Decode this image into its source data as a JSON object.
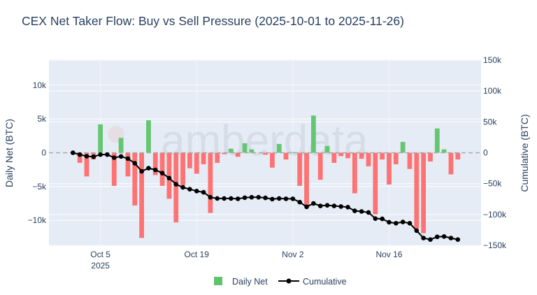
{
  "chart_data": {
    "type": "bar+line",
    "title": "CEX Net Taker Flow: Buy vs Sell Pressure (2025-10-01 to 2025-11-26)",
    "xlabel": "",
    "ylabel": "Daily Net (BTC)",
    "y2label": "Cumulative (BTC)",
    "start_date": "2025-10-01",
    "x_ticks": [
      {
        "day": 4,
        "label": "Oct 5",
        "sub": "2025"
      },
      {
        "day": 18,
        "label": "Oct 19",
        "sub": ""
      },
      {
        "day": 32,
        "label": "Nov 2",
        "sub": ""
      },
      {
        "day": 46,
        "label": "Nov 16",
        "sub": ""
      }
    ],
    "y_ticks": [
      {
        "v": 10,
        "label": "10k"
      },
      {
        "v": 5,
        "label": "5k"
      },
      {
        "v": 0,
        "label": "0"
      },
      {
        "v": -5,
        "label": "−5k"
      },
      {
        "v": -10,
        "label": "−10k"
      }
    ],
    "y2_ticks": [
      {
        "v": 150,
        "label": "150k"
      },
      {
        "v": 100,
        "label": "100k"
      },
      {
        "v": 50,
        "label": "50k"
      },
      {
        "v": 0,
        "label": "0"
      },
      {
        "v": -50,
        "label": "−50k"
      },
      {
        "v": -100,
        "label": "−100k"
      },
      {
        "v": -150,
        "label": "−150k"
      }
    ],
    "ylim": [
      -13.8,
      13.8
    ],
    "y2lim": [
      -151,
      151
    ],
    "units": "thousand BTC",
    "grid": true,
    "legend_position": "bottom-center",
    "series": [
      {
        "name": "Daily Net",
        "type": "bar",
        "color_positive": "#5ec46a",
        "color_negative": "#ff6b6b",
        "values": [
          0,
          -1.5,
          -3.5,
          -1.0,
          4.2,
          0,
          -4.9,
          2.2,
          -3.5,
          -7.8,
          -12.6,
          4.8,
          -3.3,
          -4.9,
          -6.8,
          -10.3,
          -4.8,
          -2.3,
          -3.1,
          -1.7,
          -8.9,
          -1.5,
          -0.2,
          0.6,
          -0.6,
          1.4,
          0.5,
          0,
          -0.3,
          -2.2,
          1.3,
          -1.0,
          0.1,
          -4.9,
          -8.0,
          5.5,
          -4.0,
          1.0,
          -1.5,
          -0.5,
          -0.8,
          -6.0,
          -0.9,
          -2.0,
          -9.1,
          -1.0,
          -4.7,
          -1.7,
          1.6,
          -2.4,
          -11.2,
          -11.9,
          -1.3,
          3.6,
          0.5,
          -3.2,
          -1.0
        ]
      },
      {
        "name": "Cumulative",
        "type": "line",
        "color": "#000000",
        "values": [
          0,
          -3,
          -5.7,
          -6.4,
          -3,
          -3,
          -8,
          -6,
          -9.5,
          -17,
          -30,
          -25,
          -27.7,
          -33,
          -41,
          -51,
          -56,
          -59,
          -62,
          -64,
          -72,
          -74,
          -74,
          -74,
          -74.5,
          -72.7,
          -72,
          -72,
          -73,
          -75,
          -74,
          -74.5,
          -74.5,
          -80,
          -87.5,
          -82,
          -86,
          -85,
          -86,
          -87,
          -88,
          -94,
          -95,
          -96.6,
          -106.5,
          -107,
          -112.5,
          -114,
          -112,
          -114,
          -126,
          -138,
          -140.5,
          -136,
          -135.5,
          -138,
          -140.5
        ]
      }
    ]
  },
  "watermark": "amberdata"
}
